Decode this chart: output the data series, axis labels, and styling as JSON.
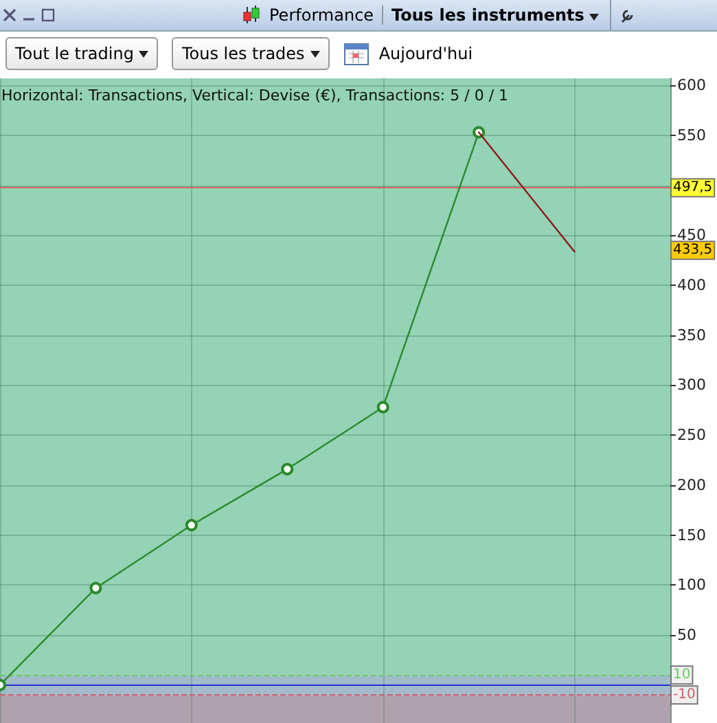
{
  "chart_data": {
    "type": "line",
    "title": "Performance",
    "subtitle": "Horizontal: Transactions, Vertical: Devise (€), Transactions: 5 / 0 / 1",
    "annotations": [
      "Tous les instruments",
      "Tout le trading",
      "Tous les trades",
      "Aujourd'hui",
      {
        "text": "433,5",
        "y": 433.5
      }
    ],
    "categories": [
      null,
      null,
      null,
      null,
      null,
      null,
      null,
      null
    ],
    "series": [
      {
        "color": "#2a8a2a",
        "marker": "circle",
        "values": [
          0,
          97,
          160,
          216,
          278,
          553,
          null,
          null
        ]
      },
      {
        "color": "#8b1a1a",
        "marker": "none",
        "values": [
          null,
          null,
          null,
          null,
          null,
          553,
          433.5,
          null
        ]
      }
    ],
    "ylim": [
      -38,
      607
    ],
    "yticks": [
      50,
      100,
      150,
      200,
      250,
      300,
      350,
      400,
      450,
      {
        "value": 500,
        "label": null
      },
      550,
      600
    ],
    "tick_labels": "y",
    "grid": true,
    "ref_lines": [
      {
        "axis": "y",
        "value": 497.5,
        "label": "497,5",
        "color": "#e06060",
        "line_style": "solid"
      },
      {
        "axis": "y",
        "value": 10,
        "label": "10",
        "color": "#66cc66",
        "line_style": "dashed"
      },
      {
        "axis": "y",
        "value": -10,
        "label": "-10",
        "color": "#d06070",
        "line_style": "dashed"
      },
      {
        "axis": "y",
        "value": 0,
        "label": null,
        "color": "#2233cc",
        "line_style": "solid"
      }
    ],
    "bands": [
      {
        "axis": "y",
        "from": 10,
        "to": 607,
        "label": null,
        "color": "#94d3b5"
      },
      {
        "axis": "y",
        "from": -10,
        "to": 10,
        "label": null,
        "color": "#a2bccc"
      },
      {
        "axis": "y",
        "from": -38,
        "to": -10,
        "label": null,
        "color": "#b0a2ac"
      }
    ]
  }
}
